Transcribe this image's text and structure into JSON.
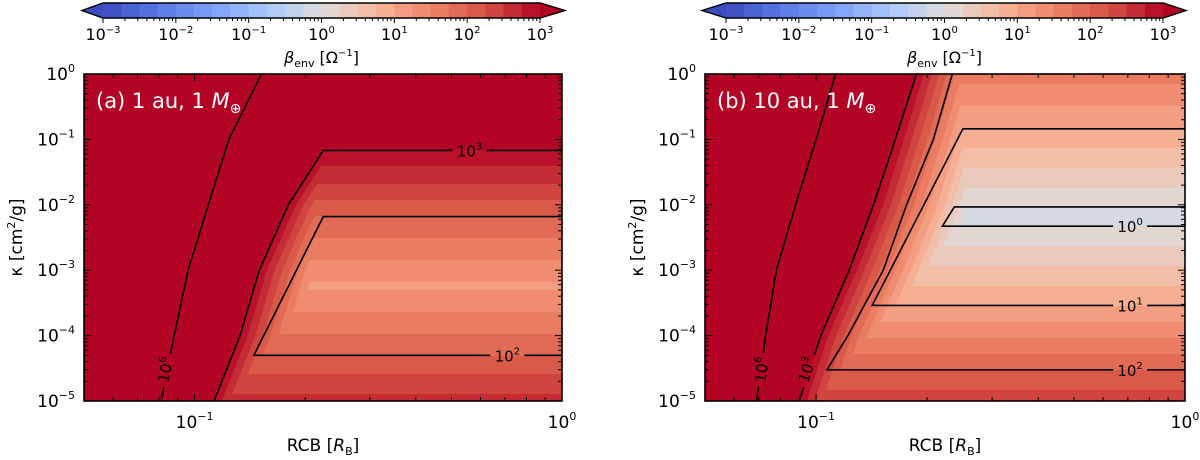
{
  "chart_data": [
    {
      "type": "heatmap",
      "panel_label": {
        "prefix": "(a) 1 au, 1 ",
        "symbol": "M",
        "subscript": "⊕"
      },
      "xlabel": {
        "prefix": "RCB [",
        "symbol": "R",
        "subscript": "B",
        "suffix": "]"
      },
      "ylabel": {
        "prefix": "κ [cm",
        "sup": "2",
        "suffix": "/g]"
      },
      "xscale": "log",
      "yscale": "log",
      "xlim": [
        0.05,
        1
      ],
      "ylim": [
        1e-05,
        1
      ],
      "xticks": [
        {
          "value": 0.1,
          "base": "10",
          "exp": "−1"
        },
        {
          "value": 1,
          "base": "10",
          "exp": "0"
        }
      ],
      "yticks": [
        {
          "value": 1,
          "base": "10",
          "exp": "0"
        },
        {
          "value": 0.1,
          "base": "10",
          "exp": "−1"
        },
        {
          "value": 0.01,
          "base": "10",
          "exp": "−2"
        },
        {
          "value": 0.001,
          "base": "10",
          "exp": "−3"
        },
        {
          "value": 0.0001,
          "base": "10",
          "exp": "−4"
        },
        {
          "value": 1e-05,
          "base": "10",
          "exp": "−5"
        }
      ],
      "colorbar": {
        "label": {
          "symbol": "β",
          "subscript": "env",
          "suffix": " [Ω",
          "sup": "−1",
          "close": "]"
        },
        "range": [
          0.001,
          1000
        ],
        "extend": "both",
        "colormap": "coolwarm",
        "ticks": [
          {
            "base": "10",
            "exp": "−3"
          },
          {
            "base": "10",
            "exp": "−2"
          },
          {
            "base": "10",
            "exp": "−1"
          },
          {
            "base": "10",
            "exp": "0"
          },
          {
            "base": "10",
            "exp": "1"
          },
          {
            "base": "10",
            "exp": "2"
          },
          {
            "base": "10",
            "exp": "3"
          }
        ]
      },
      "beta_profile_at_rcb_1": [
        [
          1,
          3981
        ],
        [
          0.068,
          1000
        ],
        [
          0.0066,
          100
        ],
        [
          0.00058,
          16
        ],
        [
          5e-05,
          100
        ],
        [
          1e-05,
          398
        ]
      ],
      "saturation_boundary": [
        [
          0.224,
          0.068
        ],
        [
          0.18,
          0.01
        ],
        [
          0.15,
          0.001
        ],
        [
          0.133,
          0.0001
        ],
        [
          0.113,
          1e-05
        ]
      ],
      "contours": [
        {
          "level": 1000000,
          "base": "10",
          "exp": "6",
          "points": [
            [
              0.081,
              1e-05
            ],
            [
              0.088,
              0.0001
            ],
            [
              0.096,
              0.001
            ],
            [
              0.109,
              0.01
            ],
            [
              0.124,
              0.1
            ],
            [
              0.152,
              1
            ]
          ],
          "label_at": [
            0.083,
            3e-05
          ]
        },
        {
          "level": 1000,
          "base": "10",
          "exp": "3",
          "points": [
            [
              1,
              0.068
            ],
            [
              0.224,
              0.068
            ],
            [
              0.18,
              0.01
            ],
            [
              0.15,
              0.001
            ],
            [
              0.133,
              0.0001
            ],
            [
              0.113,
              1e-05
            ]
          ],
          "label_at": [
            0.56,
            0.068
          ]
        },
        {
          "level": 100,
          "base": "10",
          "exp": "2",
          "points": [
            [
              1,
              0.0066
            ],
            [
              0.224,
              0.0066
            ],
            [
              0.145,
              5e-05
            ],
            [
              1,
              5e-05
            ]
          ],
          "label_at": [
            0.71,
            5e-05
          ]
        }
      ]
    },
    {
      "type": "heatmap",
      "panel_label": {
        "prefix": "(b) 10 au, 1 ",
        "symbol": "M",
        "subscript": "⊕"
      },
      "xlabel": {
        "prefix": "RCB [",
        "symbol": "R",
        "subscript": "B",
        "suffix": "]"
      },
      "ylabel": {
        "prefix": "κ [cm",
        "sup": "2",
        "suffix": "/g]"
      },
      "xscale": "log",
      "yscale": "log",
      "xlim": [
        0.05,
        1
      ],
      "ylim": [
        1e-05,
        1
      ],
      "xticks": [
        {
          "value": 0.1,
          "base": "10",
          "exp": "−1"
        },
        {
          "value": 1,
          "base": "10",
          "exp": "0"
        }
      ],
      "yticks": [
        {
          "value": 1,
          "base": "10",
          "exp": "0"
        },
        {
          "value": 0.1,
          "base": "10",
          "exp": "−1"
        },
        {
          "value": 0.01,
          "base": "10",
          "exp": "−2"
        },
        {
          "value": 0.001,
          "base": "10",
          "exp": "−3"
        },
        {
          "value": 0.0001,
          "base": "10",
          "exp": "−4"
        },
        {
          "value": 1e-05,
          "base": "10",
          "exp": "−5"
        }
      ],
      "colorbar": {
        "label": {
          "symbol": "β",
          "subscript": "env",
          "suffix": " [Ω",
          "sup": "−1",
          "close": "]"
        },
        "range": [
          0.001,
          1000
        ],
        "extend": "both",
        "colormap": "coolwarm",
        "ticks": [
          {
            "base": "10",
            "exp": "−3"
          },
          {
            "base": "10",
            "exp": "−2"
          },
          {
            "base": "10",
            "exp": "−1"
          },
          {
            "base": "10",
            "exp": "0"
          },
          {
            "base": "10",
            "exp": "1"
          },
          {
            "base": "10",
            "exp": "2"
          },
          {
            "base": "10",
            "exp": "3"
          }
        ]
      },
      "beta_profile_at_rcb_1": [
        [
          1,
          40
        ],
        [
          0.145,
          10
        ],
        [
          0.0093,
          1
        ],
        [
          0.0066,
          0.8
        ],
        [
          0.0047,
          1
        ],
        [
          0.00029,
          10
        ],
        [
          3e-05,
          100
        ],
        [
          1e-05,
          250
        ]
      ],
      "saturation_boundary": [
        [
          0.187,
          1
        ],
        [
          0.165,
          0.1
        ],
        [
          0.145,
          0.01
        ],
        [
          0.123,
          0.001
        ],
        [
          0.103,
          0.0001
        ],
        [
          0.09,
          1e-05
        ]
      ],
      "contours": [
        {
          "level": 1000000,
          "base": "10",
          "exp": "6",
          "points": [
            [
              0.069,
              1e-05
            ],
            [
              0.073,
              0.0001
            ],
            [
              0.078,
              0.001
            ],
            [
              0.088,
              0.01
            ],
            [
              0.1,
              0.1
            ],
            [
              0.113,
              1
            ]
          ],
          "label_at": [
            0.071,
            3e-05
          ]
        },
        {
          "level": 1000,
          "base": "10",
          "exp": "3",
          "points": [
            [
              0.09,
              1e-05
            ],
            [
              0.103,
              0.0001
            ],
            [
              0.123,
              0.001
            ],
            [
              0.143,
              0.01
            ],
            [
              0.164,
              0.1
            ],
            [
              0.187,
              1
            ]
          ],
          "label_at": [
            0.094,
            3e-05
          ]
        },
        {
          "level": 100,
          "base": "10",
          "exp": "2",
          "points": [
            [
              1,
              3e-05
            ],
            [
              0.107,
              3e-05
            ],
            [
              0.122,
              0.0001
            ],
            [
              0.152,
              0.001
            ],
            [
              0.176,
              0.01
            ],
            [
              0.208,
              0.1
            ],
            [
              0.234,
              1
            ]
          ],
          "label_at": [
            0.71,
            3e-05
          ]
        },
        {
          "level": 10,
          "base": "10",
          "exp": "1",
          "points": [
            [
              1,
              0.145
            ],
            [
              0.25,
              0.145
            ],
            [
              0.142,
              0.00029
            ],
            [
              1,
              0.00029
            ]
          ],
          "label_at": [
            0.71,
            0.00029
          ]
        },
        {
          "level": 1,
          "base": "10",
          "exp": "0",
          "points": [
            [
              1,
              0.0093
            ],
            [
              0.237,
              0.0093
            ],
            [
              0.22,
              0.0047
            ],
            [
              1,
              0.0047
            ]
          ],
          "label_at": [
            0.71,
            0.0047
          ]
        }
      ]
    }
  ],
  "colors": {
    "over": "#b40426",
    "under": "#3b4cc0",
    "contour": "#000000",
    "panel_label": "#ffffff"
  }
}
